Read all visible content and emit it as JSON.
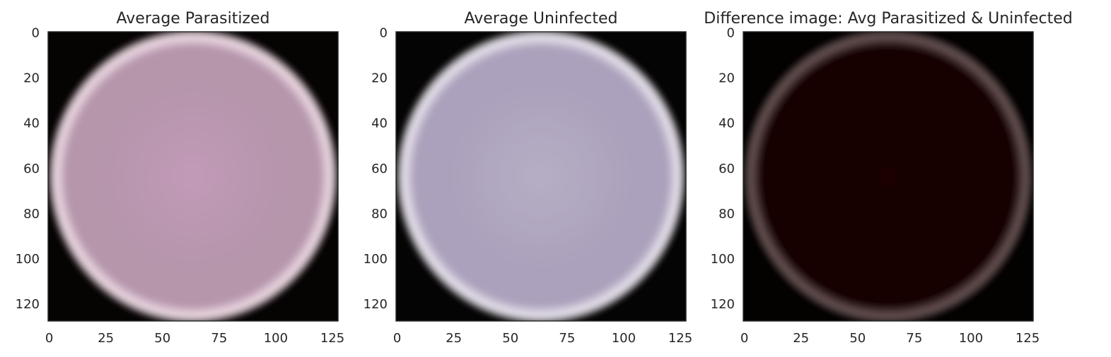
{
  "chart_data": [
    {
      "type": "heatmap",
      "title": "Average Parasitized",
      "xlim": [
        0,
        127
      ],
      "ylim": [
        127,
        0
      ],
      "xticks": [
        0,
        25,
        50,
        75,
        100,
        125
      ],
      "yticks": [
        0,
        20,
        40,
        60,
        80,
        100,
        120
      ],
      "grid": false,
      "image": {
        "size": 128,
        "background": "#060303",
        "fill": "#b596ab",
        "highlight": "#c29ab8",
        "rim": "#f0dde6"
      }
    },
    {
      "type": "heatmap",
      "title": "Average Uninfected",
      "xlim": [
        0,
        127
      ],
      "ylim": [
        127,
        0
      ],
      "xticks": [
        0,
        25,
        50,
        75,
        100,
        125
      ],
      "yticks": [
        0,
        20,
        40,
        60,
        80,
        100,
        120
      ],
      "grid": false,
      "image": {
        "size": 128,
        "background": "#050404",
        "fill": "#aca1bc",
        "highlight": "#b6aec5",
        "rim": "#ebe6ef"
      }
    },
    {
      "type": "heatmap",
      "title": "Difference image: Avg Parasitized & Uninfected",
      "xlim": [
        0,
        127
      ],
      "ylim": [
        127,
        0
      ],
      "xticks": [
        0,
        25,
        50,
        75,
        100,
        125
      ],
      "yticks": [
        0,
        20,
        40,
        60,
        80,
        100,
        120
      ],
      "grid": false,
      "image": {
        "size": 128,
        "background": "#040101",
        "fill": "#150303",
        "highlight": "#1a0404",
        "rim": "#6a5555"
      }
    }
  ]
}
